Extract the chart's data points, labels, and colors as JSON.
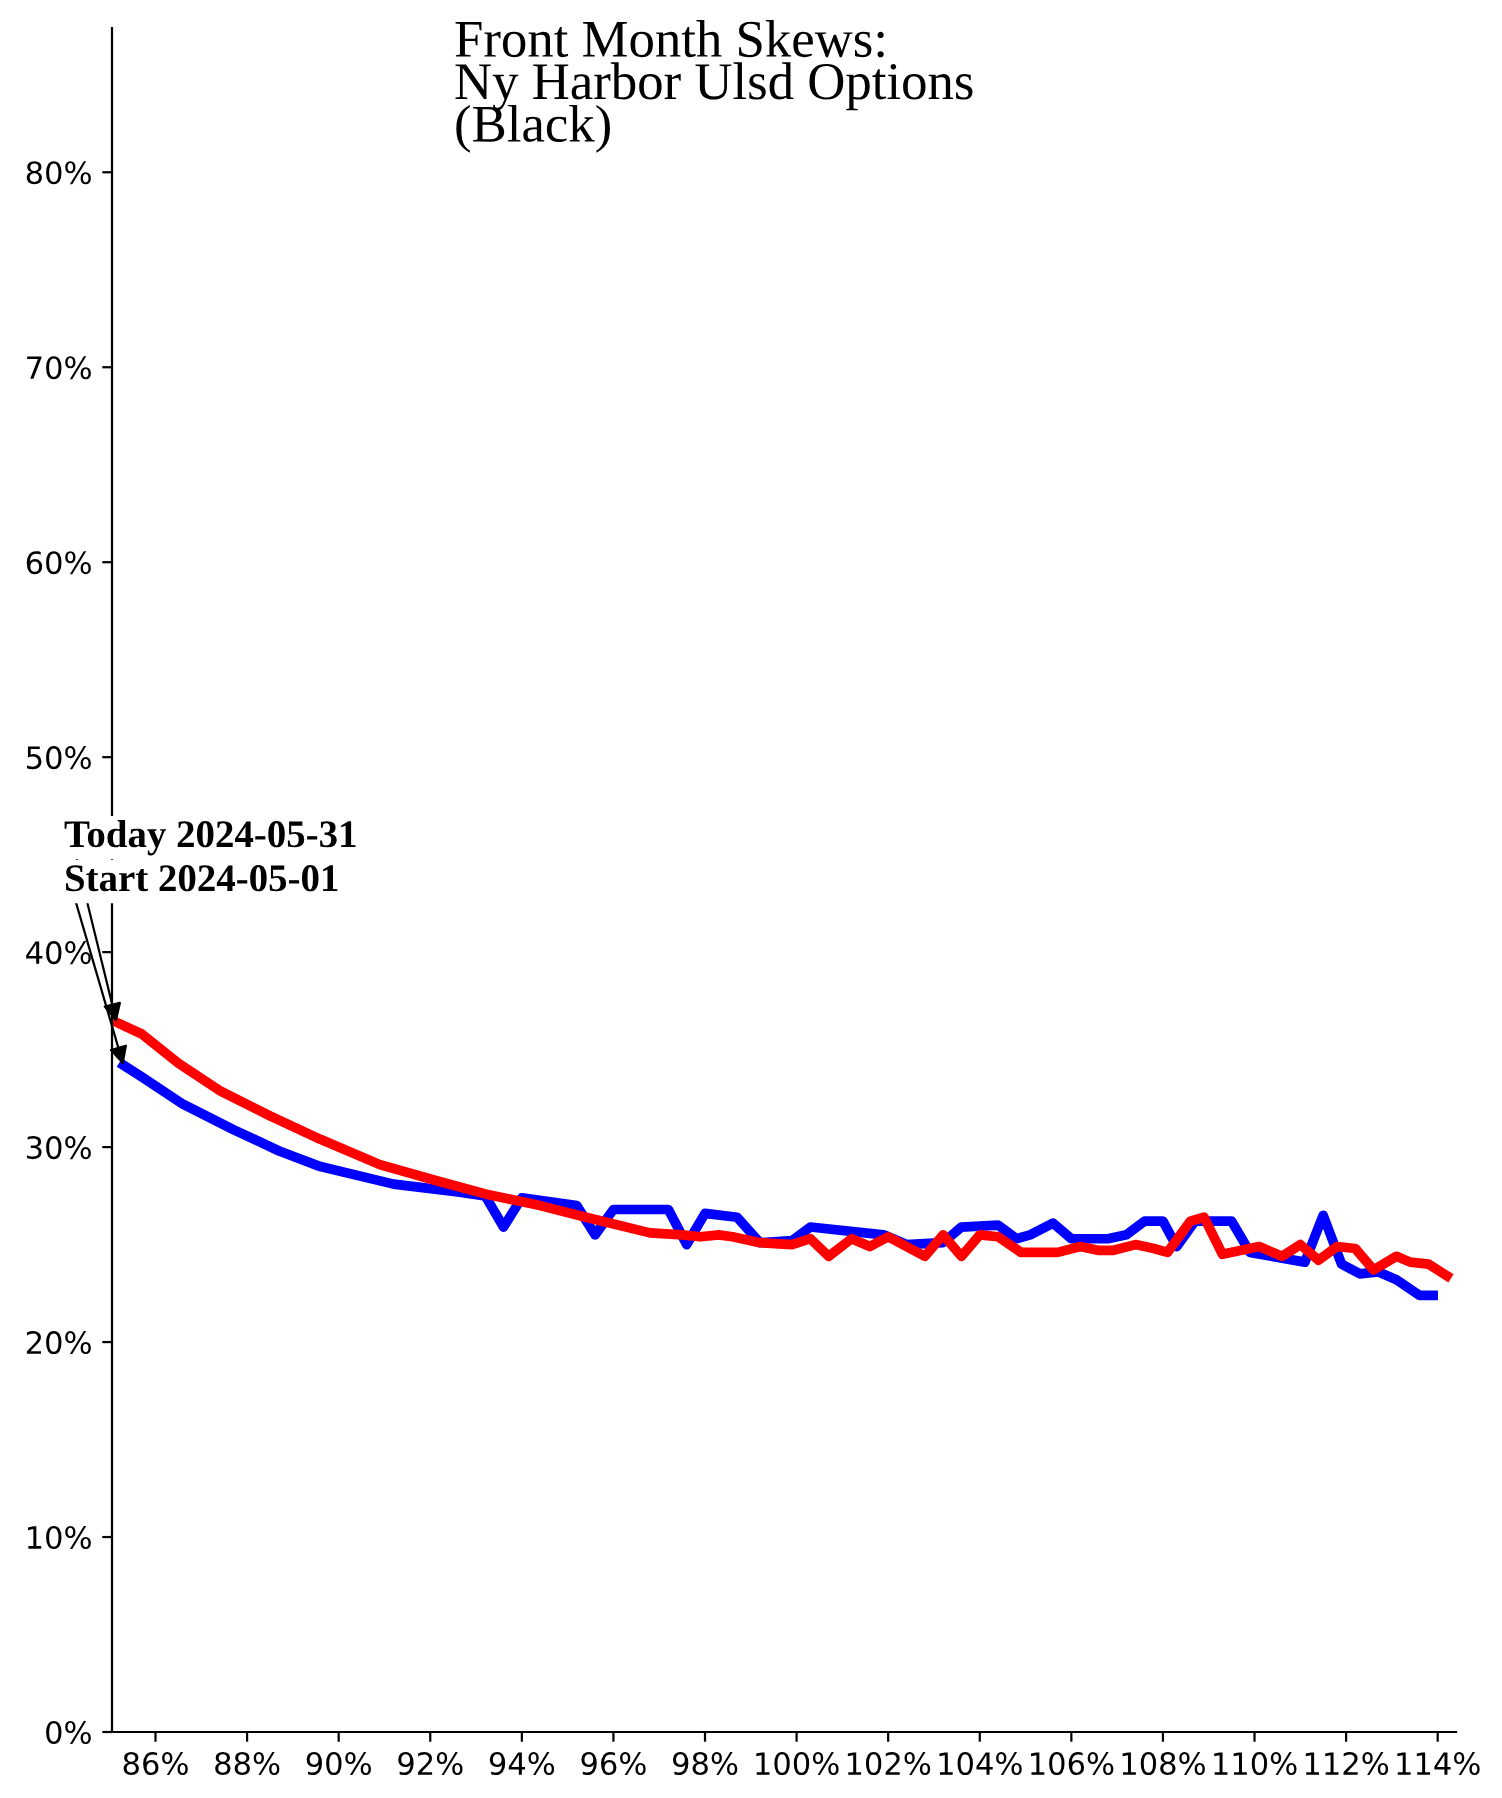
{
  "chart_data": {
    "type": "line",
    "title": "Front Month Skews:\nNy Harbor Ulsd Options\n(Black)",
    "xlim": [
      85.05,
      114.4
    ],
    "ylim": [
      0,
      87.4
    ],
    "xticks": [
      {
        "value": 86,
        "label": "86%"
      },
      {
        "value": 88,
        "label": "88%"
      },
      {
        "value": 90,
        "label": "90%"
      },
      {
        "value": 92,
        "label": "92%"
      },
      {
        "value": 94,
        "label": "94%"
      },
      {
        "value": 96,
        "label": "96%"
      },
      {
        "value": 98,
        "label": "98%"
      },
      {
        "value": 100,
        "label": "100%"
      },
      {
        "value": 102,
        "label": "102%"
      },
      {
        "value": 104,
        "label": "104%"
      },
      {
        "value": 106,
        "label": "106%"
      },
      {
        "value": 108,
        "label": "108%"
      },
      {
        "value": 110,
        "label": "110%"
      },
      {
        "value": 112,
        "label": "112%"
      },
      {
        "value": 114,
        "label": "114%"
      }
    ],
    "yticks": [
      {
        "value": 0,
        "label": "0%"
      },
      {
        "value": 10,
        "label": "10%"
      },
      {
        "value": 20,
        "label": "20%"
      },
      {
        "value": 30,
        "label": "30%"
      },
      {
        "value": 40,
        "label": "40%"
      },
      {
        "value": 50,
        "label": "50%"
      },
      {
        "value": 60,
        "label": "60%"
      },
      {
        "value": 70,
        "label": "70%"
      },
      {
        "value": 80,
        "label": "80%"
      }
    ],
    "grid": false,
    "legend": false,
    "marker": "none",
    "line_style": "solid",
    "series": [
      {
        "color": "#0000ff",
        "x": [
          85.3,
          85.7,
          86.6,
          87.7,
          88.7,
          89.6,
          91.2,
          92.6,
          93.2,
          93.6,
          94.0,
          95.2,
          95.6,
          96.0,
          97.2,
          97.6,
          98.0,
          98.7,
          99.2,
          99.9,
          100.3,
          101.9,
          102.4,
          103.2,
          103.6,
          104.4,
          104.8,
          105.1,
          105.6,
          106.0,
          106.8,
          107.2,
          107.6,
          108.0,
          108.3,
          108.7,
          109.5,
          109.9,
          111.1,
          111.5,
          111.9,
          112.3,
          112.7,
          113.1,
          113.6,
          113.9
        ],
        "values": [
          34.2,
          33.6,
          32.2,
          30.9,
          29.8,
          29.0,
          28.1,
          27.7,
          27.5,
          25.9,
          27.4,
          27.0,
          25.5,
          26.8,
          26.8,
          25.0,
          26.6,
          26.4,
          25.1,
          25.2,
          25.9,
          25.5,
          25.0,
          25.1,
          25.9,
          26.0,
          25.3,
          25.5,
          26.1,
          25.3,
          25.3,
          25.5,
          26.2,
          26.2,
          24.9,
          26.2,
          26.2,
          24.6,
          24.1,
          26.5,
          24.0,
          23.5,
          23.6,
          23.2,
          22.4,
          22.4
        ]
      },
      {
        "color": "#ff0000",
        "x": [
          85.15,
          85.7,
          86.5,
          87.4,
          88.5,
          89.6,
          90.9,
          92.1,
          93.2,
          94.4,
          95.4,
          96.8,
          97.5,
          97.9,
          98.3,
          98.6,
          99.2,
          99.9,
          100.3,
          100.7,
          101.2,
          101.6,
          102.0,
          102.8,
          103.2,
          103.6,
          104.0,
          104.4,
          104.9,
          105.7,
          106.2,
          106.6,
          106.9,
          107.4,
          107.8,
          108.1,
          108.6,
          108.9,
          109.3,
          110.1,
          110.6,
          111.0,
          111.4,
          111.8,
          112.2,
          112.6,
          113.1,
          113.4,
          113.8,
          114.2
        ],
        "values": [
          36.4,
          35.8,
          34.3,
          32.9,
          31.6,
          30.4,
          29.1,
          28.3,
          27.6,
          27.0,
          26.4,
          25.6,
          25.5,
          25.4,
          25.5,
          25.4,
          25.1,
          25.0,
          25.3,
          24.4,
          25.3,
          24.9,
          25.4,
          24.4,
          25.5,
          24.4,
          25.5,
          25.4,
          24.6,
          24.6,
          24.9,
          24.7,
          24.7,
          25.0,
          24.8,
          24.6,
          26.2,
          26.4,
          24.5,
          24.9,
          24.4,
          25.0,
          24.2,
          24.9,
          24.8,
          23.7,
          24.4,
          24.1,
          24.0,
          23.4
        ]
      }
    ],
    "annotations": [
      {
        "text": "Today 2024-05-31",
        "x": 85.15,
        "y": 36.4
      },
      {
        "text": "Start 2024-05-01",
        "x": 85.3,
        "y": 34.2
      }
    ]
  }
}
